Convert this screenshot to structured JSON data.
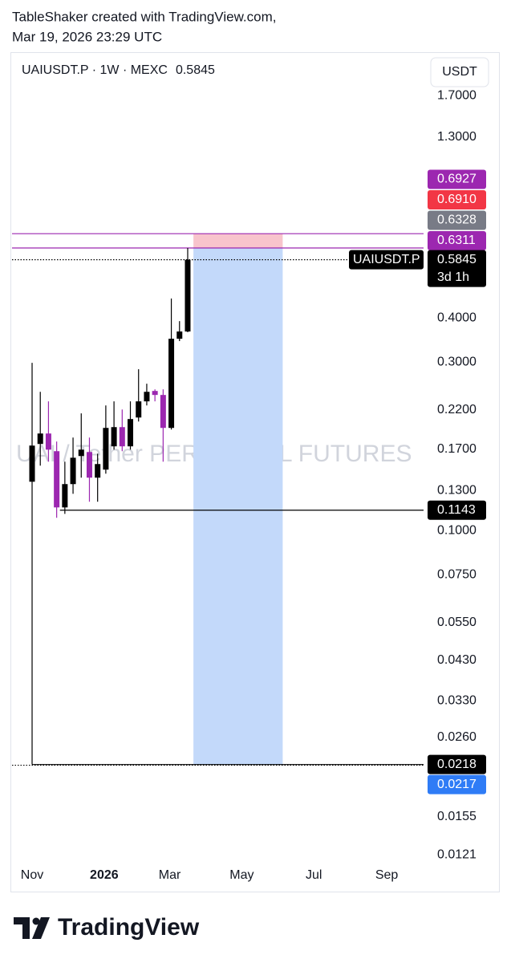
{
  "header": {
    "line1": "TableShaker created with TradingView.com,",
    "line2": "Mar 19, 2026 23:29 UTC"
  },
  "chart_data": {
    "type": "candlestick",
    "title": "UAIUSDT.P · 1W · MEXC",
    "last_price": 0.5845,
    "currency": "USDT",
    "watermark": "UAI / Tether PERPETUAL FUTURES",
    "log_scale": true,
    "up_color": "#000000",
    "down_color": "#9c27b0",
    "x": [
      0,
      1,
      2,
      3,
      4,
      5,
      6,
      7,
      8,
      9,
      10,
      11,
      12,
      13,
      14,
      15,
      16,
      17,
      18,
      19
    ],
    "open": [
      0.1376,
      0.176,
      0.1884,
      0.1679,
      0.1164,
      0.1355,
      0.1627,
      0.167,
      0.1413,
      0.1489,
      0.1733,
      0.1964,
      0.1733,
      0.2091,
      0.2323,
      0.2486,
      0.2422,
      0.1954,
      0.3493,
      0.3662
    ],
    "high": [
      0.2985,
      0.2472,
      0.2323,
      0.1788,
      0.1568,
      0.1835,
      0.2148,
      0.1835,
      0.1652,
      0.2262,
      0.2323,
      0.2203,
      0.2323,
      0.2864,
      0.2606,
      0.2512,
      0.2512,
      0.4538,
      0.3918,
      0.6311
    ],
    "low": [
      0.0218,
      0.1528,
      0.1568,
      0.1088,
      0.1116,
      0.1272,
      0.1413,
      0.1208,
      0.1208,
      0.145,
      0.1696,
      0.1679,
      0.1696,
      0.2037,
      0.2262,
      0.2323,
      0.1568,
      0.1933,
      0.344,
      0.3645
    ],
    "close": [
      0.1741,
      0.1884,
      0.1696,
      0.1164,
      0.1355,
      0.1609,
      0.1696,
      0.1413,
      0.1544,
      0.1954,
      0.1964,
      0.1733,
      0.207,
      0.2323,
      0.2472,
      0.2422,
      0.1954,
      0.3493,
      0.3662,
      0.5845
    ],
    "xlim": [
      -2.45,
      47.8
    ],
    "xticks": [
      {
        "value": 0,
        "label": "Nov"
      },
      {
        "value": 8.8,
        "label": "2026"
      },
      {
        "value": 16.8,
        "label": "Mar"
      },
      {
        "value": 25.6,
        "label": "May"
      },
      {
        "value": 34.4,
        "label": "Jul"
      },
      {
        "value": 43.3,
        "label": "Sep"
      }
    ],
    "ylim": [
      0.0115,
      2.26
    ],
    "yticks": [
      {
        "value": 1.7,
        "label": "1.7000"
      },
      {
        "value": 1.3,
        "label": "1.3000"
      },
      {
        "value": 0.4,
        "label": "0.4000"
      },
      {
        "value": 0.3,
        "label": "0.3000"
      },
      {
        "value": 0.22,
        "label": "0.2200"
      },
      {
        "value": 0.17,
        "label": "0.1700"
      },
      {
        "value": 0.13,
        "label": "0.1300"
      },
      {
        "value": 0.1,
        "label": "0.1000"
      },
      {
        "value": 0.075,
        "label": "0.0750"
      },
      {
        "value": 0.055,
        "label": "0.0550"
      },
      {
        "value": 0.043,
        "label": "0.0430"
      },
      {
        "value": 0.033,
        "label": "0.0330"
      },
      {
        "value": 0.026,
        "label": "0.0260"
      },
      {
        "value": 0.0155,
        "label": "0.0155"
      },
      {
        "value": 0.0121,
        "label": "0.0121"
      }
    ],
    "position": {
      "x": [
        19.7,
        30.6
      ],
      "stop": 0.6927,
      "entry": 0.6311,
      "target": 0.0218,
      "stop_color": "#f8c4cc",
      "target_color": "#c3d9fa"
    },
    "horizontal_lines": [
      {
        "value": 0.6927,
        "x_start": -2.45,
        "color": "#9c27b0",
        "style": "solid"
      },
      {
        "value": 0.6311,
        "x_start": -2.45,
        "color": "#9c27b0",
        "style": "solid"
      },
      {
        "value": 0.1143,
        "x_start": 3.4,
        "color": "#000000",
        "style": "solid"
      },
      {
        "value": 0.0218,
        "x_start": 0,
        "color": "#000000",
        "style": "solid"
      },
      {
        "value": 0.5845,
        "x_start": -2.45,
        "color": "#000000",
        "style": "dotted"
      },
      {
        "value": 0.0217,
        "x_start": -2.45,
        "color": "#000000",
        "style": "dotted"
      }
    ],
    "price_label_stack": [
      {
        "value": 0.6927,
        "color": "#9c27b0"
      },
      {
        "value": 0.691,
        "label": "0.6910",
        "color": "#f23645"
      },
      {
        "value": 0.6328,
        "color": "#787b86"
      },
      {
        "value": 0.6311,
        "color": "#9c27b0"
      }
    ],
    "price_labels": [
      {
        "value": 0.5845,
        "color": "#000000",
        "symbol": "UAIUSDT.P",
        "countdown": "3d 1h"
      },
      {
        "value": 0.1143,
        "color": "#000000"
      },
      {
        "value": 0.0218,
        "color": "#000000"
      },
      {
        "value": 0.0217,
        "color": "#2f7cf6"
      }
    ]
  },
  "footer": {
    "brand": "TradingView"
  }
}
